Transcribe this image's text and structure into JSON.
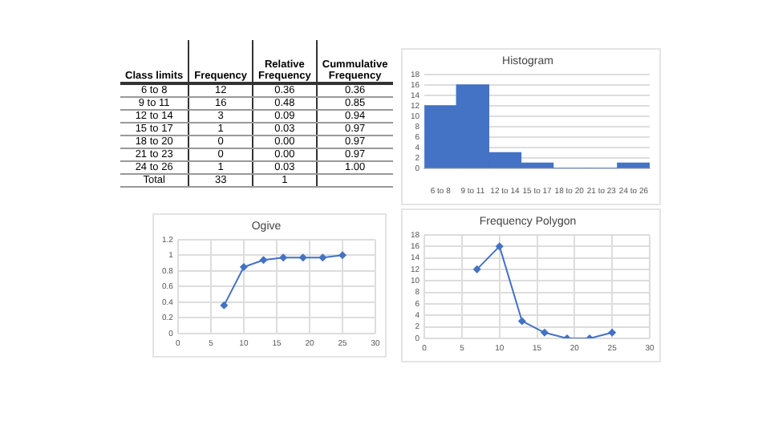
{
  "chart_data": [
    {
      "type": "other",
      "xlabel": "Class limits",
      "categories": [
        "6 to 8",
        "9 to 11",
        "12 to 14",
        "15 to 17",
        "18 to 20",
        "21 to 23",
        "24 to 26",
        "Total"
      ],
      "series": [
        {
          "name": "Frequency",
          "values": [
            12,
            16,
            3,
            1,
            0,
            0,
            1,
            33
          ],
          "value_labels": [
            "12",
            "16",
            "3",
            "1",
            "0",
            "0",
            "1",
            "33"
          ]
        },
        {
          "name": "Relative Frequency",
          "values": [
            0.36,
            0.48,
            0.09,
            0.03,
            0,
            0,
            0.03,
            1
          ],
          "value_labels": [
            "0.36",
            "0.48",
            "0.09",
            "0.03",
            "0.00",
            "0.00",
            "0.03",
            "1"
          ]
        },
        {
          "name": "Cummulative Frequency",
          "values": [
            0.36,
            0.85,
            0.94,
            0.97,
            0.97,
            0.97,
            1,
            null
          ],
          "value_labels": [
            "0.36",
            "0.85",
            "0.94",
            "0.97",
            "0.97",
            "0.97",
            "1.00",
            null
          ]
        }
      ]
    },
    {
      "type": "bar",
      "title": "Histogram",
      "categories": [
        "6 to 8",
        "9 to 11",
        "12 to 14",
        "15 to 17",
        "18 to 20",
        "21 to 23",
        "24 to 26"
      ],
      "values": [
        12,
        16,
        3,
        1,
        0,
        0,
        1
      ],
      "color": "#4472c4",
      "ylim": [
        0,
        18
      ],
      "yticks": [
        0,
        2,
        4,
        6,
        8,
        10,
        12,
        14,
        16,
        18
      ],
      "grid": "y"
    },
    {
      "type": "line",
      "title": "Ogive",
      "x": [
        7,
        10,
        13,
        16,
        19,
        22,
        25
      ],
      "values": [
        0.36,
        0.85,
        0.94,
        0.97,
        0.97,
        0.97,
        1
      ],
      "color": "#4472c4",
      "xlim": [
        0,
        30
      ],
      "xticks": [
        0,
        5,
        10,
        15,
        20,
        25,
        30
      ],
      "ylim": [
        0,
        1.2
      ],
      "yticks": [
        0,
        0.2,
        0.4,
        0.6,
        0.8,
        1,
        1.2
      ],
      "grid": true,
      "marker": "diamond"
    },
    {
      "type": "line",
      "title": "Frequency Polygon",
      "x": [
        7,
        10,
        13,
        16,
        19,
        22,
        25
      ],
      "values": [
        12,
        16,
        3,
        1,
        0,
        0,
        1
      ],
      "color": "#4472c4",
      "xlim": [
        0,
        30
      ],
      "xticks": [
        0,
        5,
        10,
        15,
        20,
        25,
        30
      ],
      "ylim": [
        0,
        18
      ],
      "yticks": [
        0,
        2,
        4,
        6,
        8,
        10,
        12,
        14,
        16,
        18
      ],
      "grid": true,
      "marker": "diamond"
    }
  ]
}
